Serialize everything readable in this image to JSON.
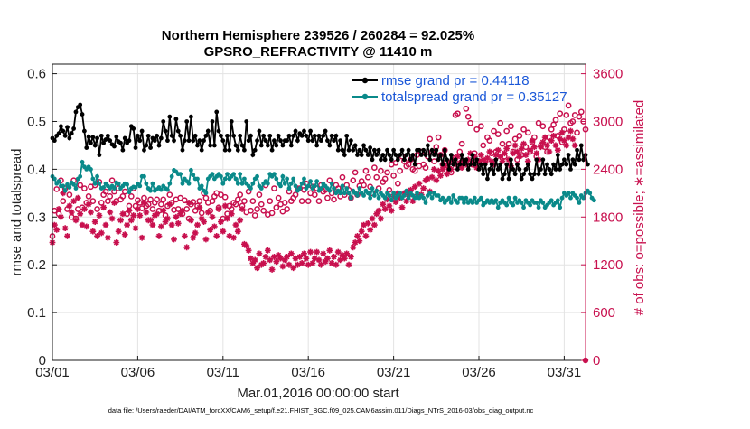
{
  "chart_data": {
    "type": "line",
    "title": "Northern Hemisphere 239526 / 260284 = 92.025%",
    "subtitle": "GPSRO_REFRACTIVITY @ 11410 m",
    "xlabel": "Mar.01,2016 00:00:00 start",
    "ylabel": "rmse and totalspread",
    "ylabel_right": "# of obs: o=possible; ∗=assimilated",
    "footnote": "data file: /Users/raeder/DAI/ATM_forcXX/CAM6_setup/f.e21.FHIST_BGC.f09_025.CAM6assim.011/Diags_NTrS_2016-03/obs_diag_output.nc",
    "x_tick_labels": [
      "03/01",
      "03/06",
      "03/11",
      "03/16",
      "03/21",
      "03/26",
      "03/31"
    ],
    "x_tick_days": [
      0,
      5,
      10,
      15,
      20,
      25,
      30
    ],
    "xlim_days": [
      0,
      31.25
    ],
    "y_left": {
      "lim": [
        0,
        0.62
      ],
      "ticks": [
        0,
        0.1,
        0.2,
        0.3,
        0.4,
        0.5,
        0.6
      ],
      "tick_labels": [
        "0",
        "0.1",
        "0.2",
        "0.3",
        "0.4",
        "0.5",
        "0.6"
      ]
    },
    "y_right": {
      "lim": [
        0,
        3720
      ],
      "ticks": [
        0,
        600,
        1200,
        1800,
        2400,
        3000,
        3600
      ],
      "tick_labels": [
        "0",
        "600",
        "1200",
        "1800",
        "2400",
        "3000",
        "3600"
      ]
    },
    "grid": true,
    "legend_placement": "top-right",
    "colors": {
      "rmse": "#000000",
      "spread": "#0a8a8a",
      "obs": "#c8104e",
      "legend_text": "#1a57d8"
    },
    "x_step_hours": 3,
    "series": [
      {
        "name": "rmse grand pr = 0.44118",
        "axis": "left",
        "style": "line-marker",
        "values": [
          0.465,
          0.46,
          0.47,
          0.475,
          0.49,
          0.48,
          0.47,
          0.488,
          0.465,
          0.475,
          0.485,
          0.52,
          0.53,
          0.535,
          0.515,
          0.48,
          0.445,
          0.468,
          0.455,
          0.467,
          0.45,
          0.465,
          0.43,
          0.47,
          0.455,
          0.462,
          0.47,
          0.46,
          0.452,
          0.448,
          0.468,
          0.458,
          0.455,
          0.44,
          0.465,
          0.455,
          0.46,
          0.49,
          0.485,
          0.445,
          0.47,
          0.46,
          0.48,
          0.44,
          0.45,
          0.47,
          0.445,
          0.465,
          0.46,
          0.47,
          0.45,
          0.465,
          0.5,
          0.48,
          0.46,
          0.51,
          0.47,
          0.46,
          0.505,
          0.48,
          0.47,
          0.44,
          0.46,
          0.5,
          0.46,
          0.51,
          0.46,
          0.47,
          0.45,
          0.46,
          0.44,
          0.46,
          0.47,
          0.48,
          0.45,
          0.5,
          0.45,
          0.52,
          0.48,
          0.47,
          0.46,
          0.44,
          0.47,
          0.44,
          0.5,
          0.47,
          0.45,
          0.44,
          0.47,
          0.45,
          0.44,
          0.5,
          0.46,
          0.47,
          0.43,
          0.44,
          0.46,
          0.48,
          0.45,
          0.47,
          0.46,
          0.45,
          0.47,
          0.44,
          0.46,
          0.45,
          0.47,
          0.46,
          0.45,
          0.46,
          0.46,
          0.47,
          0.45,
          0.47,
          0.48,
          0.46,
          0.475,
          0.47,
          0.48,
          0.47,
          0.46,
          0.48,
          0.46,
          0.47,
          0.45,
          0.47,
          0.46,
          0.47,
          0.48,
          0.46,
          0.45,
          0.47,
          0.46,
          0.47,
          0.44,
          0.46,
          0.44,
          0.43,
          0.47,
          0.44,
          0.46,
          0.44,
          0.45,
          0.43,
          0.44,
          0.43,
          0.45,
          0.44,
          0.43,
          0.445,
          0.42,
          0.44,
          0.43,
          0.44,
          0.42,
          0.43,
          0.42,
          0.44,
          0.43,
          0.42,
          0.44,
          0.43,
          0.42,
          0.43,
          0.44,
          0.42,
          0.43,
          0.44,
          0.42,
          0.43,
          0.41,
          0.44,
          0.44,
          0.43,
          0.44,
          0.43,
          0.45,
          0.42,
          0.44,
          0.43,
          0.44,
          0.42,
          0.43,
          0.41,
          0.44,
          0.42,
          0.4,
          0.43,
          0.41,
          0.42,
          0.4,
          0.41,
          0.43,
          0.41,
          0.42,
          0.4,
          0.41,
          0.43,
          0.41,
          0.42,
          0.4,
          0.41,
          0.39,
          0.41,
          0.38,
          0.4,
          0.41,
          0.39,
          0.42,
          0.4,
          0.41,
          0.38,
          0.39,
          0.41,
          0.38,
          0.42,
          0.4,
          0.39,
          0.41,
          0.4,
          0.38,
          0.39,
          0.4,
          0.41,
          0.39,
          0.38,
          0.39,
          0.42,
          0.39,
          0.4,
          0.42,
          0.39,
          0.41,
          0.4,
          0.39,
          0.41,
          0.4,
          0.43,
          0.4,
          0.41,
          0.42,
          0.41,
          0.43,
          0.4,
          0.42,
          0.41,
          0.44,
          0.42,
          0.45,
          0.42,
          0.43,
          0.41
        ]
      },
      {
        "name": "totalspread grand pr = 0.35127",
        "axis": "left",
        "style": "line-marker",
        "values": [
          0.385,
          0.38,
          0.37,
          0.375,
          0.365,
          0.365,
          0.355,
          0.368,
          0.362,
          0.372,
          0.368,
          0.36,
          0.38,
          0.385,
          0.415,
          0.405,
          0.4,
          0.405,
          0.4,
          0.38,
          0.37,
          0.385,
          0.37,
          0.36,
          0.362,
          0.37,
          0.365,
          0.36,
          0.365,
          0.36,
          0.372,
          0.37,
          0.36,
          0.365,
          0.37,
          0.368,
          0.352,
          0.36,
          0.363,
          0.362,
          0.369,
          0.365,
          0.385,
          0.385,
          0.37,
          0.36,
          0.355,
          0.37,
          0.355,
          0.358,
          0.362,
          0.357,
          0.365,
          0.36,
          0.357,
          0.37,
          0.385,
          0.398,
          0.395,
          0.39,
          0.39,
          0.37,
          0.38,
          0.375,
          0.37,
          0.398,
          0.388,
          0.38,
          0.38,
          0.36,
          0.365,
          0.355,
          0.35,
          0.38,
          0.385,
          0.39,
          0.38,
          0.385,
          0.39,
          0.385,
          0.37,
          0.38,
          0.39,
          0.38,
          0.385,
          0.39,
          0.38,
          0.37,
          0.39,
          0.37,
          0.38,
          0.37,
          0.365,
          0.36,
          0.37,
          0.38,
          0.385,
          0.365,
          0.36,
          0.37,
          0.375,
          0.37,
          0.39,
          0.385,
          0.39,
          0.38,
          0.37,
          0.365,
          0.385,
          0.37,
          0.38,
          0.36,
          0.37,
          0.38,
          0.365,
          0.355,
          0.36,
          0.37,
          0.38,
          0.36,
          0.365,
          0.375,
          0.36,
          0.365,
          0.375,
          0.355,
          0.36,
          0.37,
          0.365,
          0.36,
          0.355,
          0.37,
          0.36,
          0.35,
          0.355,
          0.35,
          0.365,
          0.35,
          0.36,
          0.35,
          0.34,
          0.355,
          0.35,
          0.345,
          0.36,
          0.35,
          0.345,
          0.355,
          0.35,
          0.34,
          0.36,
          0.345,
          0.355,
          0.34,
          0.35,
          0.345,
          0.34,
          0.35,
          0.345,
          0.335,
          0.35,
          0.34,
          0.345,
          0.35,
          0.34,
          0.345,
          0.355,
          0.34,
          0.35,
          0.345,
          0.34,
          0.35,
          0.34,
          0.345,
          0.34,
          0.33,
          0.345,
          0.35,
          0.34,
          0.35,
          0.345,
          0.345,
          0.335,
          0.34,
          0.33,
          0.335,
          0.34,
          0.33,
          0.345,
          0.335,
          0.33,
          0.34,
          0.34,
          0.33,
          0.34,
          0.33,
          0.335,
          0.33,
          0.34,
          0.33,
          0.335,
          0.34,
          0.325,
          0.33,
          0.335,
          0.33,
          0.335,
          0.33,
          0.335,
          0.32,
          0.33,
          0.335,
          0.33,
          0.325,
          0.34,
          0.33,
          0.325,
          0.34,
          0.33,
          0.335,
          0.33,
          0.32,
          0.335,
          0.33,
          0.325,
          0.335,
          0.33,
          0.33,
          0.32,
          0.335,
          0.33,
          0.32,
          0.325,
          0.33,
          0.335,
          0.325,
          0.33,
          0.335,
          0.32,
          0.34,
          0.35,
          0.345,
          0.35,
          0.34,
          0.35,
          0.345,
          0.34,
          0.33,
          0.345,
          0.34,
          0.35,
          0.355,
          0.35,
          0.34,
          0.335
        ]
      },
      {
        "name": "possible",
        "axis": "right",
        "style": "circle",
        "values": [
          1560,
          1880,
          2150,
          1840,
          2260,
          2000,
          2160,
          1900,
          2080,
          1800,
          2260,
          1780,
          1900,
          2200,
          1920,
          2160,
          1980,
          2060,
          2180,
          2000,
          2200,
          1900,
          2240,
          1980,
          2080,
          2120,
          2000,
          2060,
          2260,
          2120,
          2000,
          2160,
          2020,
          2060,
          2120,
          1840,
          1940,
          2060,
          2160,
          1940,
          2010,
          1980,
          1910,
          2040,
          1940,
          1960,
          2020,
          1900,
          1980,
          2020,
          1880,
          1960,
          2020,
          1820,
          1940,
          2080,
          1980,
          1890,
          2020,
          1900,
          2040,
          1840,
          2010,
          1900,
          1780,
          1960,
          1990,
          1880,
          1940,
          2000,
          1850,
          2100,
          2040,
          1980,
          1880,
          2000,
          2060,
          2100,
          1920,
          2080,
          1780,
          2050,
          1840,
          1940,
          1900,
          1980,
          1960,
          2020,
          2080,
          1940,
          2000,
          1860,
          2120,
          1880,
          2000,
          1820,
          1900,
          2080,
          1960,
          1880,
          2200,
          1830,
          2000,
          1850,
          2160,
          1920,
          2040,
          1960,
          1870,
          1980,
          1900,
          2120,
          2000,
          2040,
          2080,
          2160,
          2160,
          2000,
          2140,
          2220,
          2000,
          2100,
          2180,
          2080,
          2160,
          2000,
          2200,
          2120,
          2140,
          2040,
          2260,
          2100,
          2020,
          2200,
          2160,
          2060,
          2300,
          2080,
          2200,
          2140,
          2040,
          2260,
          2360,
          2080,
          2190,
          2250,
          2200,
          2380,
          2300,
          2180,
          2100,
          2420,
          2300,
          2160,
          2380,
          2240,
          2280,
          2360,
          2140,
          2460,
          2320,
          2480,
          2220,
          2380,
          2560,
          2500,
          2440,
          2460,
          2520,
          2400,
          2380,
          2580,
          2440,
          2620,
          2460,
          2420,
          2560,
          2780,
          2620,
          2500,
          2680,
          2800,
          2580,
          2460,
          2640,
          2500,
          2400,
          2360,
          2540,
          3080,
          3100,
          2620,
          2720,
          2500,
          3160,
          3060,
          2980,
          2460,
          2600,
          2900,
          2500,
          2940,
          2700,
          2500,
          2800,
          2760,
          2600,
          2880,
          2620,
          2840,
          2980,
          2720,
          2560,
          2880,
          2720,
          2940,
          2620,
          2780,
          2520,
          2820,
          2580,
          2900,
          2680,
          2860,
          2620,
          2740,
          2800,
          2560,
          2980,
          2700,
          2940,
          2680,
          2620,
          2800,
          2900,
          2960,
          3020,
          2820,
          3100,
          2740,
          2900,
          3080,
          3200,
          2980,
          3000,
          3080,
          2860,
          3060,
          3120,
          3000,
          2900
        ]
      },
      {
        "name": "assimilated",
        "axis": "right",
        "style": "asterisk",
        "values": [
          1480,
          1700,
          1640,
          1900,
          1800,
          2100,
          1660,
          1560,
          1940,
          1860,
          2000,
          1760,
          2040,
          1840,
          1700,
          1900,
          1680,
          1960,
          1860,
          1620,
          1740,
          1560,
          1820,
          1600,
          1920,
          1700,
          1540,
          1860,
          1780,
          1980,
          1480,
          1620,
          1760,
          1840,
          1580,
          1700,
          1880,
          1760,
          1820,
          1660,
          1900,
          1820,
          1540,
          1980,
          1860,
          1760,
          1760,
          1700,
          1820,
          1840,
          1560,
          1680,
          1880,
          1740,
          1780,
          1960,
          1700,
          1520,
          1800,
          1720,
          1840,
          1880,
          1560,
          1420,
          1980,
          1760,
          1540,
          1600,
          1700,
          1920,
          1780,
          1740,
          1520,
          1860,
          1640,
          1800,
          1680,
          1560,
          1900,
          1740,
          1620,
          1940,
          1780,
          1560,
          1840,
          1540,
          1700,
          1620,
          1760,
          1900,
          1460,
          1440,
          1380,
          1280,
          1220,
          1260,
          1160,
          1340,
          1200,
          1220,
          1300,
          1380,
          1260,
          1140,
          1300,
          1240,
          1320,
          1280,
          1180,
          1260,
          1300,
          1200,
          1340,
          1160,
          1280,
          1200,
          1300,
          1220,
          1340,
          1280,
          1200,
          1360,
          1220,
          1280,
          1360,
          1260,
          1200,
          1340,
          1240,
          1280,
          1380,
          1220,
          1300,
          1200,
          1360,
          1260,
          1320,
          1280,
          1340,
          1200,
          1300,
          1420,
          1480,
          1560,
          1500,
          1620,
          1700,
          1560,
          1720,
          1640,
          1780,
          1700,
          1840,
          1880,
          1780,
          1960,
          1900,
          2020,
          1940,
          1880,
          2060,
          1990,
          2100,
          2040,
          1920,
          2100,
          2000,
          2080,
          2140,
          2000,
          2180,
          2060,
          2220,
          2080,
          2160,
          2260,
          2280,
          2120,
          2300,
          2400,
          2260,
          2380,
          2320,
          2400,
          2440,
          2340,
          2480,
          2400,
          2520,
          2460,
          2560,
          2480,
          2420,
          2500,
          2460,
          2520,
          2600,
          2480,
          2560,
          2420,
          2500,
          2580,
          2520,
          2480,
          2540,
          2620,
          2500,
          2460,
          2580,
          2640,
          2560,
          2500,
          2600,
          2660,
          2520,
          2440,
          2600,
          2700,
          2620,
          2560,
          2660,
          2720,
          2580,
          2500,
          2640,
          2760,
          2680,
          2600,
          2520,
          2680,
          2740,
          2800,
          2700,
          2620,
          2760,
          2820,
          2700,
          2640,
          2780,
          2860,
          2760,
          2700,
          2800,
          2880,
          2780,
          2700
        ]
      }
    ]
  }
}
